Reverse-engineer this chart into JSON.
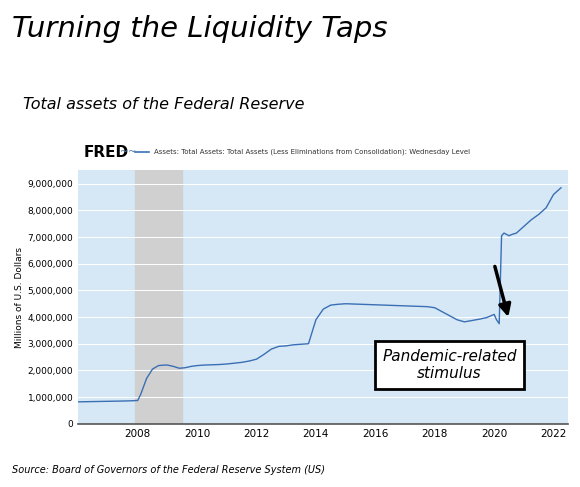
{
  "title": "Turning the Liquidity Taps",
  "subtitle": "Total assets of the Federal Reserve",
  "source": "Source: Board of Governors of the Federal Reserve System (US)",
  "legend_label": "Assets: Total Assets: Total Assets (Less Eliminations from Consolidation): Wednesday Level",
  "ylabel": "Millions of U.S. Dollars",
  "background_color": "#ffffff",
  "plot_bg_color": "#d6e8f5",
  "recession_color": "#d0d0d0",
  "line_color": "#3a6fb5",
  "annotation_text": "Pandemic-related\nstimulus",
  "ylim": [
    0,
    9500000
  ],
  "yticks": [
    0,
    1000000,
    2000000,
    3000000,
    4000000,
    5000000,
    6000000,
    7000000,
    8000000,
    9000000
  ],
  "recession_start": 2007.92,
  "recession_end": 2009.5,
  "xlim_left": 2006.0,
  "xlim_right": 2022.5,
  "xticks": [
    2008,
    2010,
    2012,
    2014,
    2016,
    2018,
    2020,
    2022
  ],
  "years": [
    2006.0,
    2006.25,
    2006.5,
    2006.75,
    2007.0,
    2007.25,
    2007.5,
    2007.75,
    2008.0,
    2008.1,
    2008.3,
    2008.5,
    2008.7,
    2008.9,
    2009.0,
    2009.2,
    2009.4,
    2009.6,
    2009.8,
    2010.0,
    2010.25,
    2010.5,
    2010.75,
    2011.0,
    2011.25,
    2011.5,
    2011.75,
    2012.0,
    2012.25,
    2012.5,
    2012.75,
    2013.0,
    2013.25,
    2013.5,
    2013.75,
    2014.0,
    2014.25,
    2014.5,
    2014.75,
    2015.0,
    2015.25,
    2015.5,
    2015.75,
    2016.0,
    2016.25,
    2016.5,
    2016.75,
    2017.0,
    2017.25,
    2017.5,
    2017.75,
    2018.0,
    2018.25,
    2018.5,
    2018.75,
    2019.0,
    2019.25,
    2019.5,
    2019.75,
    2020.0,
    2020.08,
    2020.17,
    2020.25,
    2020.33,
    2020.42,
    2020.5,
    2020.6,
    2020.75,
    2021.0,
    2021.25,
    2021.5,
    2021.75,
    2022.0,
    2022.25
  ],
  "values": [
    820000,
    825000,
    830000,
    835000,
    840000,
    845000,
    850000,
    858000,
    870000,
    1100000,
    1700000,
    2050000,
    2180000,
    2200000,
    2200000,
    2150000,
    2080000,
    2100000,
    2150000,
    2180000,
    2200000,
    2210000,
    2220000,
    2240000,
    2270000,
    2300000,
    2350000,
    2420000,
    2600000,
    2800000,
    2900000,
    2920000,
    2960000,
    2980000,
    3000000,
    3900000,
    4300000,
    4450000,
    4480000,
    4500000,
    4490000,
    4480000,
    4470000,
    4460000,
    4450000,
    4440000,
    4430000,
    4420000,
    4410000,
    4400000,
    4390000,
    4350000,
    4200000,
    4050000,
    3900000,
    3820000,
    3870000,
    3920000,
    3980000,
    4100000,
    3900000,
    3750000,
    7050000,
    7150000,
    7100000,
    7050000,
    7100000,
    7150000,
    7400000,
    7650000,
    7850000,
    8100000,
    8600000,
    8850000
  ]
}
